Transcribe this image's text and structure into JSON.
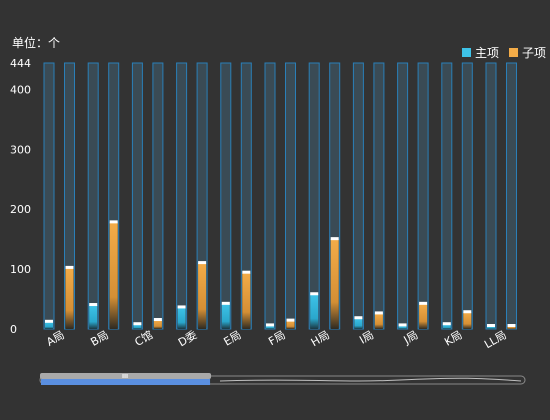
{
  "unit_label": "单位：个",
  "legend": [
    {
      "name": "主项",
      "color": "#3ec3e8"
    },
    {
      "name": "子项",
      "color": "#f3ac48"
    }
  ],
  "colors": {
    "background": "#333333",
    "bar_track": "#3a4b55",
    "bar_track_border": "#2a7fb8",
    "main": "#3ec3e8",
    "sub": "#f3ac48",
    "slider_fill": "#5a8fe0",
    "slider_handle": "#a9a9a9"
  },
  "slider": {
    "handle_icon": "grip-icon",
    "selected_fraction": 0.35
  },
  "chart_data": {
    "type": "bar",
    "categories": [
      "A局",
      "B局",
      "C馆",
      "D委",
      "E局",
      "F局",
      "H局",
      "I局",
      "J局",
      "K局",
      "LL局"
    ],
    "series": [
      {
        "name": "主项",
        "values": [
          12,
          40,
          8,
          36,
          42,
          6,
          58,
          18,
          6,
          8,
          5
        ]
      },
      {
        "name": "子项",
        "values": [
          102,
          178,
          15,
          110,
          94,
          14,
          150,
          26,
          42,
          28,
          5
        ]
      }
    ],
    "ylim": [
      0,
      444
    ],
    "yticks": [
      "0",
      "100",
      "200",
      "300",
      "400",
      "444"
    ],
    "grid": false,
    "legend_position": "top-right"
  }
}
